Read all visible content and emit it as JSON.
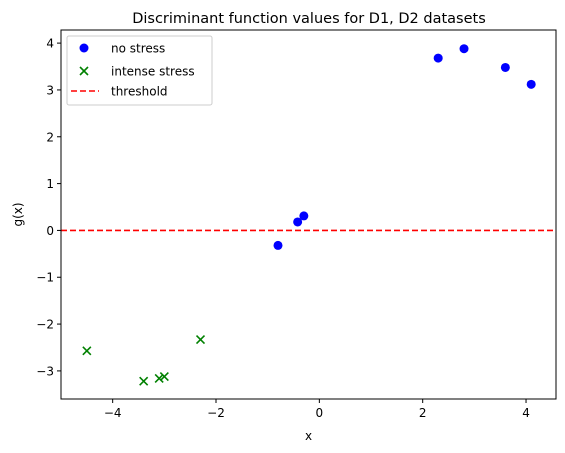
{
  "chart_data": {
    "type": "scatter",
    "title": "Discriminant function values for D1, D2 datasets",
    "xlabel": "x",
    "ylabel": "g(x)",
    "xlim": [
      -5.0,
      4.58
    ],
    "ylim": [
      -3.6,
      4.28
    ],
    "xticks": [
      -4,
      -2,
      0,
      2,
      4
    ],
    "yticks": [
      -3,
      -2,
      -1,
      0,
      1,
      2,
      3,
      4
    ],
    "grid": false,
    "legend_position": "top-left",
    "series": [
      {
        "name": "no stress",
        "marker": "circle",
        "color": "#0000ff",
        "x": [
          -0.8,
          -0.42,
          -0.3,
          2.3,
          2.8,
          3.6,
          4.1
        ],
        "y": [
          -0.32,
          0.18,
          0.31,
          3.68,
          3.88,
          3.48,
          3.12
        ]
      },
      {
        "name": "intense stress",
        "marker": "x",
        "color": "#008000",
        "x": [
          -4.5,
          -3.4,
          -3.1,
          -3.0,
          -2.3
        ],
        "y": [
          -2.57,
          -3.22,
          -3.16,
          -3.12,
          -2.33
        ]
      },
      {
        "name": "threshold",
        "marker": "dashed-line",
        "color": "#ff0000",
        "y": 0
      }
    ]
  }
}
